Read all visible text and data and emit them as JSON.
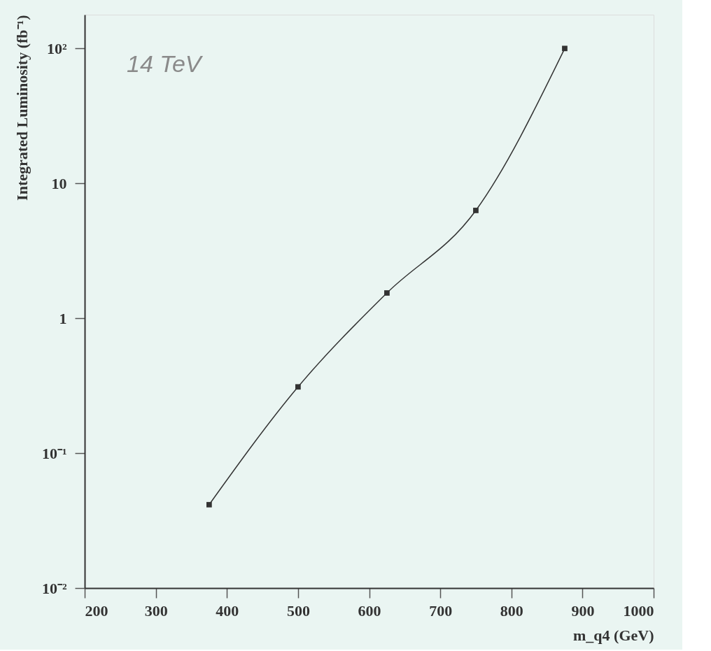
{
  "chart_data": {
    "type": "line",
    "xlabel": "m_q4 (GeV)",
    "ylabel": "Integrated Luminosity (fb⁻¹)",
    "annotations": [
      "14 TeV"
    ],
    "x": [
      375,
      500,
      625,
      750,
      875
    ],
    "series": [
      {
        "color": "#333333",
        "values": [
          0.0415,
          0.31,
          1.54,
          6.3,
          100
        ]
      }
    ],
    "xlim": [
      200,
      1000
    ],
    "xticks": [
      200,
      300,
      400,
      500,
      600,
      700,
      800,
      900,
      1000
    ],
    "ylim": [
      0.01,
      178
    ],
    "yticks": [
      {
        "value": 0.01,
        "label": "10⁻²"
      },
      {
        "value": 0.1,
        "label": "10⁻¹"
      },
      1,
      10,
      {
        "value": 100,
        "label": "10²"
      }
    ],
    "log": "y",
    "grid": false,
    "marker": "square",
    "line_style": "solid"
  }
}
